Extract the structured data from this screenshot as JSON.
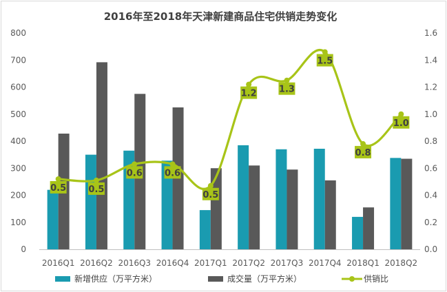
{
  "chart_data": {
    "type": "bar",
    "title": "2016年至2018年天津新建商品住宅供销走势变化",
    "categories": [
      "2016Q1",
      "2016Q2",
      "2016Q3",
      "2016Q4",
      "2017Q1",
      "2017Q2",
      "2017Q3",
      "2017Q4",
      "2018Q1",
      "2018Q2"
    ],
    "series": [
      {
        "name": "新增供应（万平方米）",
        "kind": "bar",
        "axis": "left",
        "color": "#1a9bb0",
        "values": [
          220,
          350,
          365,
          328,
          145,
          385,
          370,
          372,
          120,
          338
        ]
      },
      {
        "name": "成交量（万平方米）",
        "kind": "bar",
        "axis": "left",
        "color": "#595959",
        "values": [
          428,
          692,
          575,
          525,
          300,
          310,
          295,
          255,
          155,
          335
        ]
      },
      {
        "name": "供销比",
        "kind": "line",
        "axis": "right",
        "color": "#a8c418",
        "values": [
          0.52,
          0.51,
          0.63,
          0.63,
          0.47,
          1.22,
          1.25,
          1.46,
          0.78,
          1.0
        ],
        "labels": [
          "0.5",
          "0.5",
          "0.6",
          "0.6",
          "0.5",
          "1.2",
          "1.3",
          "1.5",
          "0.8",
          "1.0"
        ]
      }
    ],
    "ylim_left": [
      0,
      800
    ],
    "yticks_left": [
      "0",
      "100",
      "200",
      "300",
      "400",
      "500",
      "600",
      "700",
      "800"
    ],
    "ylim_right": [
      0,
      1.6
    ],
    "yticks_right": [
      "0.0",
      "0.2",
      "0.4",
      "0.6",
      "0.8",
      "1.0",
      "1.2",
      "1.4",
      "1.6"
    ],
    "legend_position": "bottom",
    "grid": false
  }
}
